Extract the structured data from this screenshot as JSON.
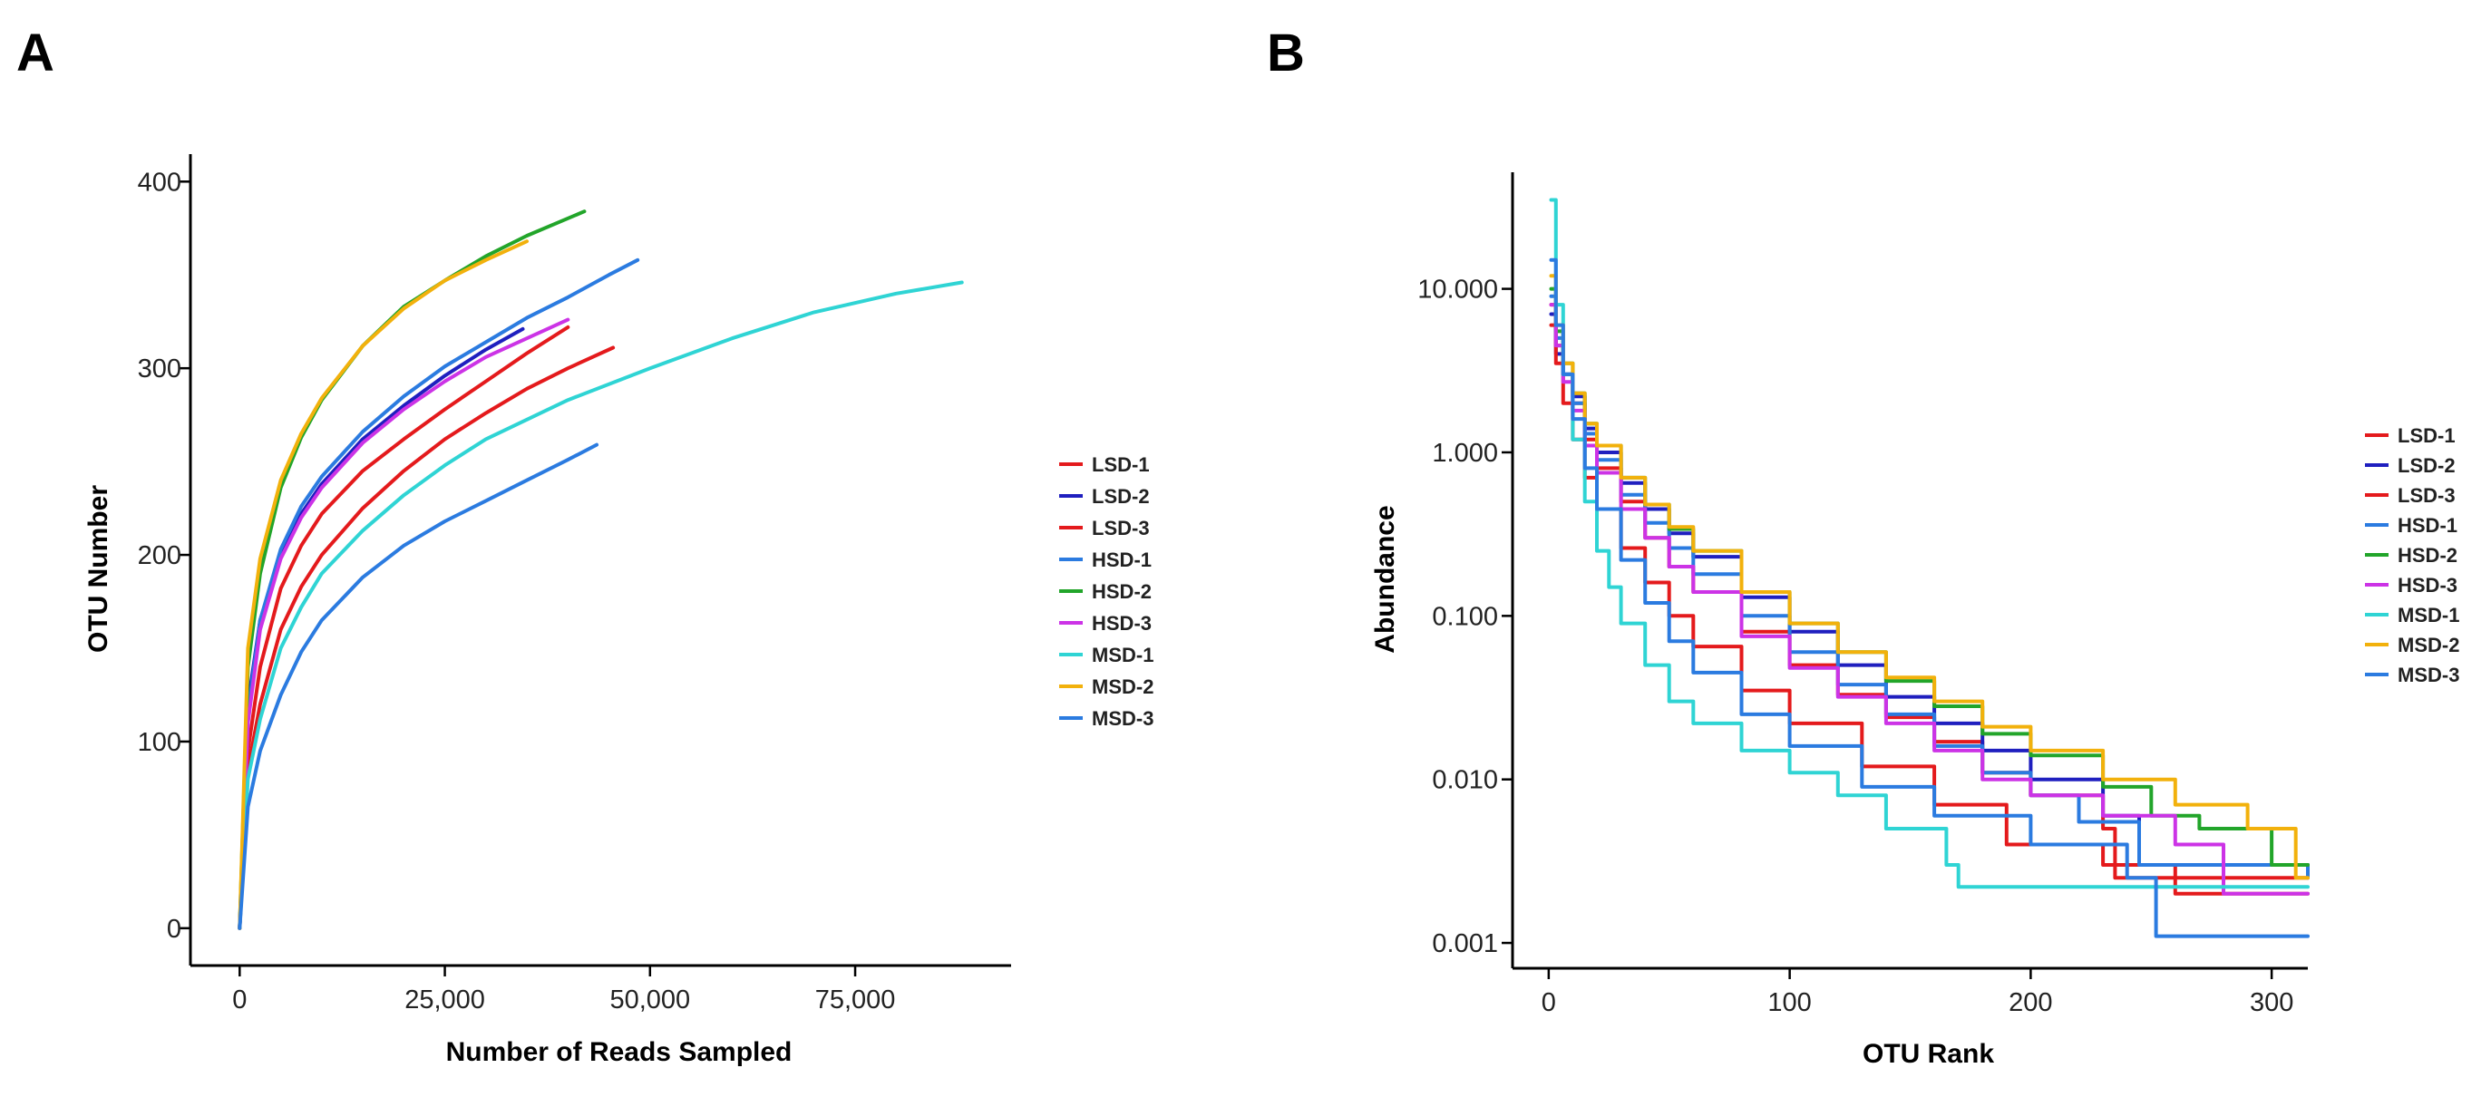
{
  "chart_data": [
    {
      "panel": "A",
      "type": "line",
      "xlabel": "Number of Reads Sampled",
      "ylabel": "OTU Number",
      "xlim": [
        -6000,
        94000
      ],
      "ylim": [
        -20,
        405
      ],
      "xticks": [
        0,
        25000,
        50000,
        75000
      ],
      "xtick_labels": [
        "0",
        "25,000",
        "50,000",
        "75,000"
      ],
      "yticks": [
        0,
        100,
        200,
        300,
        400
      ],
      "ytick_labels": [
        "0",
        "100",
        "200",
        "300",
        "400"
      ],
      "series": [
        {
          "name": "LSD-1",
          "color": "#e41a1c",
          "x": [
            0,
            1000,
            2500,
            5000,
            7500,
            10000,
            15000,
            20000,
            25000,
            30000,
            35000,
            40000
          ],
          "y": [
            0,
            95,
            140,
            182,
            205,
            222,
            245,
            262,
            278,
            293,
            308,
            322
          ]
        },
        {
          "name": "LSD-2",
          "color": "#1f1fbf",
          "x": [
            0,
            1000,
            2500,
            5000,
            7500,
            10000,
            15000,
            20000,
            25000,
            30000,
            34500
          ],
          "y": [
            0,
            120,
            165,
            200,
            222,
            238,
            262,
            280,
            296,
            310,
            321
          ]
        },
        {
          "name": "LSD-3",
          "color": "#e41a1c",
          "x": [
            0,
            1000,
            2500,
            5000,
            7500,
            10000,
            15000,
            20000,
            25000,
            30000,
            35000,
            40000,
            45500
          ],
          "y": [
            0,
            85,
            120,
            160,
            183,
            200,
            225,
            245,
            262,
            276,
            289,
            300,
            311
          ]
        },
        {
          "name": "HSD-1",
          "color": "#2b7be0",
          "x": [
            0,
            1000,
            2500,
            5000,
            7500,
            10000,
            15000,
            20000,
            25000,
            30000,
            35000,
            40000,
            45000,
            48500
          ],
          "y": [
            0,
            115,
            165,
            203,
            226,
            242,
            266,
            285,
            301,
            314,
            327,
            338,
            350,
            358
          ]
        },
        {
          "name": "HSD-2",
          "color": "#22a52a",
          "x": [
            0,
            1000,
            2500,
            5000,
            7500,
            10000,
            15000,
            20000,
            25000,
            30000,
            35000,
            42000
          ],
          "y": [
            0,
            140,
            190,
            236,
            263,
            283,
            312,
            333,
            347,
            360,
            371,
            384
          ]
        },
        {
          "name": "HSD-3",
          "color": "#cc33e6",
          "x": [
            0,
            1000,
            2500,
            5000,
            7500,
            10000,
            15000,
            20000,
            25000,
            30000,
            35000,
            40000
          ],
          "y": [
            0,
            110,
            160,
            198,
            220,
            236,
            260,
            278,
            293,
            306,
            316,
            326
          ]
        },
        {
          "name": "MSD-1",
          "color": "#2fd4d4",
          "x": [
            0,
            1000,
            2500,
            5000,
            7500,
            10000,
            15000,
            20000,
            25000,
            30000,
            40000,
            50000,
            60000,
            70000,
            80000,
            88000
          ],
          "y": [
            0,
            80,
            112,
            150,
            172,
            190,
            213,
            232,
            248,
            262,
            283,
            300,
            316,
            330,
            340,
            346
          ]
        },
        {
          "name": "MSD-2",
          "color": "#f2b10c",
          "x": [
            0,
            1000,
            2500,
            5000,
            7500,
            10000,
            15000,
            20000,
            25000,
            30000,
            35000
          ],
          "y": [
            0,
            150,
            198,
            240,
            265,
            284,
            312,
            332,
            347,
            358,
            368
          ]
        },
        {
          "name": "MSD-3",
          "color": "#2b7be0",
          "x": [
            0,
            1000,
            2500,
            5000,
            7500,
            10000,
            15000,
            20000,
            25000,
            30000,
            35000,
            40000,
            43500
          ],
          "y": [
            0,
            65,
            95,
            125,
            148,
            165,
            188,
            205,
            218,
            229,
            240,
            251,
            259
          ]
        }
      ]
    },
    {
      "panel": "B",
      "type": "line",
      "yscale": "log",
      "xlabel": "OTU Rank",
      "ylabel": "Abundance",
      "xlim": [
        -15,
        315
      ],
      "ylim": [
        0.0007,
        40
      ],
      "xticks": [
        0,
        100,
        200,
        300
      ],
      "xtick_labels": [
        "0",
        "100",
        "200",
        "300"
      ],
      "yticks": [
        0.001,
        0.01,
        0.1,
        1,
        10
      ],
      "ytick_labels": [
        "0.001",
        "0.010",
        "0.100",
        "1.000",
        "10.000"
      ],
      "series": [
        {
          "name": "LSD-1",
          "color": "#e41a1c",
          "x": [
            1,
            3,
            6,
            10,
            15,
            20,
            30,
            40,
            50,
            60,
            80,
            100,
            120,
            140,
            160,
            180,
            200,
            230,
            235,
            315
          ],
          "y": [
            8,
            4.5,
            3,
            2,
            1.2,
            0.8,
            0.5,
            0.3,
            0.2,
            0.14,
            0.08,
            0.05,
            0.033,
            0.024,
            0.017,
            0.011,
            0.008,
            0.005,
            0.0025,
            0.0025
          ]
        },
        {
          "name": "LSD-2",
          "color": "#1f1fbf",
          "x": [
            1,
            3,
            6,
            10,
            15,
            20,
            30,
            40,
            50,
            60,
            80,
            100,
            120,
            140,
            160,
            180,
            200,
            230,
            245,
            315
          ],
          "y": [
            7,
            4,
            3,
            2.2,
            1.4,
            1,
            0.65,
            0.45,
            0.32,
            0.23,
            0.13,
            0.08,
            0.05,
            0.032,
            0.022,
            0.015,
            0.01,
            0.006,
            0.003,
            0.003
          ]
        },
        {
          "name": "LSD-3",
          "color": "#e41a1c",
          "x": [
            1,
            3,
            6,
            10,
            15,
            20,
            30,
            40,
            50,
            60,
            80,
            100,
            130,
            160,
            190,
            230,
            260,
            315
          ],
          "y": [
            6,
            3.5,
            2,
            1.2,
            0.7,
            0.45,
            0.26,
            0.16,
            0.1,
            0.065,
            0.035,
            0.022,
            0.012,
            0.007,
            0.004,
            0.003,
            0.002,
            0.002
          ]
        },
        {
          "name": "HSD-1",
          "color": "#2b7be0",
          "x": [
            1,
            3,
            6,
            10,
            15,
            20,
            30,
            40,
            50,
            60,
            80,
            100,
            120,
            140,
            160,
            180,
            200,
            220,
            245,
            315
          ],
          "y": [
            9,
            5,
            3,
            2,
            1.3,
            0.9,
            0.55,
            0.37,
            0.26,
            0.18,
            0.1,
            0.06,
            0.038,
            0.025,
            0.016,
            0.011,
            0.008,
            0.0055,
            0.003,
            0.0025
          ]
        },
        {
          "name": "HSD-2",
          "color": "#22a52a",
          "x": [
            1,
            3,
            6,
            10,
            15,
            20,
            30,
            40,
            50,
            60,
            80,
            100,
            120,
            140,
            160,
            180,
            200,
            230,
            250,
            270,
            300,
            315
          ],
          "y": [
            10,
            5.5,
            3.5,
            2.3,
            1.5,
            1.1,
            0.7,
            0.48,
            0.34,
            0.25,
            0.14,
            0.09,
            0.06,
            0.04,
            0.028,
            0.019,
            0.014,
            0.009,
            0.006,
            0.005,
            0.003,
            0.003
          ]
        },
        {
          "name": "HSD-3",
          "color": "#cc33e6",
          "x": [
            1,
            3,
            6,
            10,
            15,
            20,
            30,
            40,
            50,
            60,
            80,
            100,
            120,
            140,
            160,
            180,
            200,
            230,
            260,
            280,
            315
          ],
          "y": [
            8,
            4.5,
            2.7,
            1.8,
            1.1,
            0.75,
            0.45,
            0.3,
            0.2,
            0.14,
            0.075,
            0.048,
            0.032,
            0.022,
            0.015,
            0.01,
            0.008,
            0.006,
            0.004,
            0.002,
            0.002
          ]
        },
        {
          "name": "MSD-1",
          "color": "#2fd4d4",
          "x": [
            1,
            3,
            6,
            10,
            15,
            20,
            25,
            30,
            40,
            50,
            60,
            80,
            100,
            120,
            140,
            165,
            170,
            315
          ],
          "y": [
            35,
            8,
            3,
            1.2,
            0.5,
            0.25,
            0.15,
            0.09,
            0.05,
            0.03,
            0.022,
            0.015,
            0.011,
            0.008,
            0.005,
            0.003,
            0.0022,
            0.0022
          ]
        },
        {
          "name": "MSD-2",
          "color": "#f2b10c",
          "x": [
            1,
            3,
            6,
            10,
            15,
            20,
            30,
            40,
            50,
            60,
            80,
            100,
            120,
            140,
            160,
            180,
            200,
            230,
            260,
            290,
            310,
            315
          ],
          "y": [
            12,
            6,
            3.5,
            2.3,
            1.5,
            1.1,
            0.7,
            0.48,
            0.35,
            0.25,
            0.14,
            0.09,
            0.06,
            0.042,
            0.03,
            0.021,
            0.015,
            0.01,
            0.007,
            0.005,
            0.0025,
            0.0025
          ]
        },
        {
          "name": "MSD-3",
          "color": "#2b7be0",
          "x": [
            1,
            3,
            6,
            10,
            15,
            20,
            30,
            40,
            50,
            60,
            80,
            100,
            130,
            160,
            200,
            240,
            252,
            315
          ],
          "y": [
            15,
            6,
            3,
            1.6,
            0.8,
            0.45,
            0.22,
            0.12,
            0.07,
            0.045,
            0.025,
            0.016,
            0.009,
            0.006,
            0.004,
            0.0025,
            0.0011,
            0.0011
          ]
        }
      ]
    }
  ]
}
